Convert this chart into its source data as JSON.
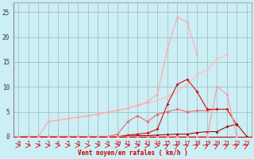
{
  "x": [
    0,
    1,
    2,
    3,
    4,
    5,
    6,
    7,
    8,
    9,
    10,
    11,
    12,
    13,
    14,
    15,
    16,
    17,
    18,
    19,
    20,
    21,
    22,
    23
  ],
  "line_lightest": [
    0,
    0,
    0,
    3.0,
    3.3,
    3.6,
    3.9,
    4.2,
    4.5,
    4.9,
    5.3,
    5.7,
    6.2,
    6.7,
    7.3,
    8.0,
    9.0,
    10.5,
    12.5,
    13.5,
    15.5,
    16.5,
    null,
    null
  ],
  "line_light": [
    0,
    0,
    0,
    3.0,
    3.3,
    3.6,
    3.9,
    4.2,
    4.5,
    4.9,
    5.3,
    5.7,
    6.3,
    7.0,
    8.5,
    17.5,
    24.0,
    23.0,
    16.5,
    null,
    null,
    null,
    null,
    null
  ],
  "line_med": [
    0,
    0,
    0,
    0,
    0,
    0,
    0,
    0,
    0,
    0,
    0.5,
    3.0,
    4.2,
    3.0,
    4.5,
    5.0,
    5.5,
    5.0,
    5.2,
    5.2,
    5.5,
    null,
    null,
    null
  ],
  "line_dark": [
    0,
    0,
    0,
    0,
    0,
    0,
    0,
    0,
    0,
    0,
    0,
    0.3,
    0.5,
    0.7,
    1.5,
    6.5,
    10.5,
    11.5,
    9.0,
    5.5,
    5.5,
    5.5,
    2.3,
    null
  ],
  "line_darkest": [
    0,
    0,
    0,
    0,
    0,
    0,
    0,
    0,
    0,
    0,
    0,
    0.1,
    0.2,
    0.2,
    0.3,
    0.4,
    0.5,
    0.5,
    0.8,
    1.0,
    1.0,
    2.0,
    2.5,
    0.0
  ],
  "line_pink2": [
    0,
    0,
    0,
    0,
    0,
    0,
    0,
    0,
    0,
    0,
    0,
    0,
    0,
    0,
    0,
    0,
    0,
    0,
    0,
    0,
    10.0,
    8.5,
    0,
    null
  ],
  "color_lightest": "#ffbbbb",
  "color_light": "#ffaaaa",
  "color_med": "#ee6666",
  "color_dark": "#cc1111",
  "color_darkest": "#991111",
  "color_pink2": "#ff9999",
  "bg_color": "#cceef5",
  "grid_color": "#99bbbb",
  "label_color": "#cc0000",
  "xlabel": "Vent moyen/en rafales ( km/h )",
  "xlim": [
    -0.5,
    23.5
  ],
  "ylim": [
    0,
    27
  ],
  "yticks": [
    0,
    5,
    10,
    15,
    20,
    25
  ],
  "xticks": [
    0,
    1,
    2,
    3,
    4,
    5,
    6,
    7,
    8,
    9,
    10,
    11,
    12,
    13,
    14,
    15,
    16,
    17,
    18,
    19,
    20,
    21,
    22,
    23
  ]
}
